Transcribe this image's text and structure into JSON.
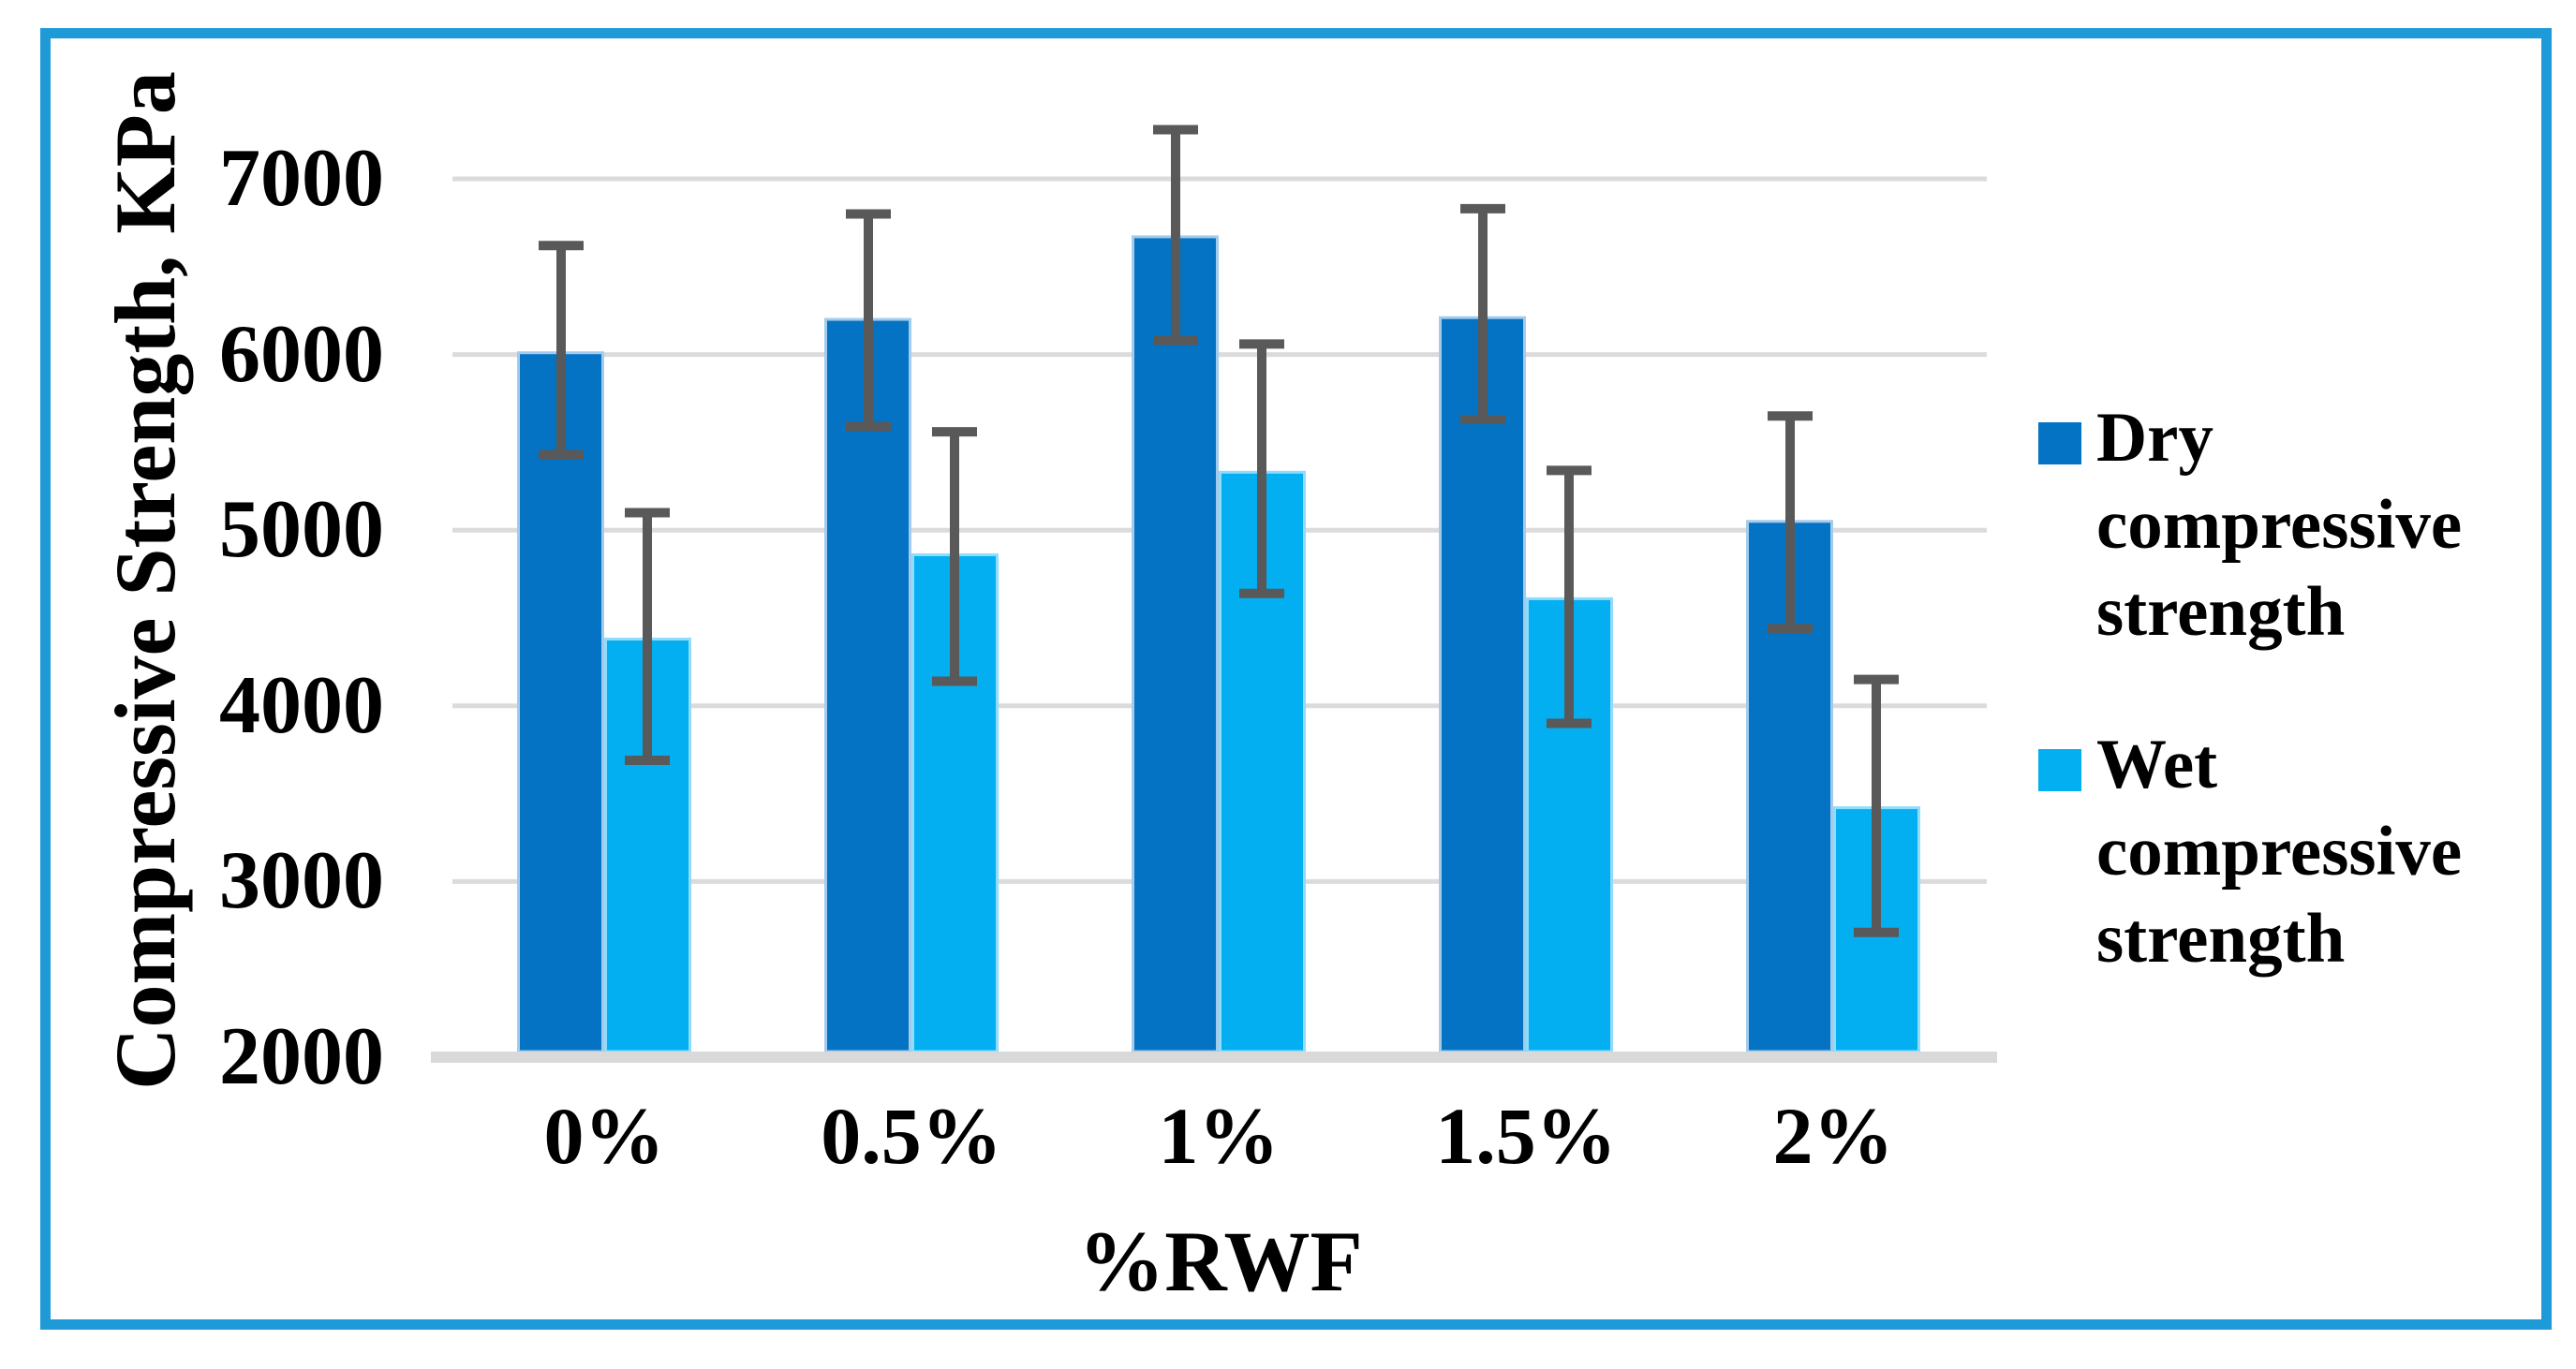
{
  "chart_data": {
    "type": "bar",
    "title": "",
    "categories": [
      "0%",
      "0.5%",
      "1%",
      "1.5%",
      "2%"
    ],
    "series": [
      {
        "name": "Dry compressive strength",
        "color": "#0473C4",
        "edge_color": "#A3CBEC",
        "values": [
          6010,
          6200,
          6670,
          6210,
          5050
        ],
        "error_high": [
          6620,
          6800,
          7280,
          6830,
          5650
        ],
        "error_low": [
          5430,
          5590,
          6080,
          5630,
          4440
        ]
      },
      {
        "name": "Wet compressive strength",
        "color": "#03AFF0",
        "edge_color": "#90DCFA",
        "values": [
          4380,
          4860,
          5330,
          4610,
          3420
        ],
        "error_high": [
          5100,
          5560,
          6060,
          5340,
          4150
        ],
        "error_low": [
          3690,
          4140,
          4640,
          3900,
          2710
        ]
      }
    ],
    "xlabel": "%RWF",
    "ylabel": "Compressive Strength, KPa",
    "ylim": [
      2000,
      7400
    ],
    "yticks": [
      7000,
      6000,
      5000,
      4000,
      3000,
      2000
    ],
    "ytick_step": 1000,
    "grid": true,
    "legend_position": "right",
    "colors": {
      "error_bar": "#595959",
      "gridline": "#DBDBDB",
      "axis_line": "#D9D9D9",
      "frame_border": "#1E9AD7",
      "text": "#000000",
      "background": "#FFFFFF"
    }
  }
}
